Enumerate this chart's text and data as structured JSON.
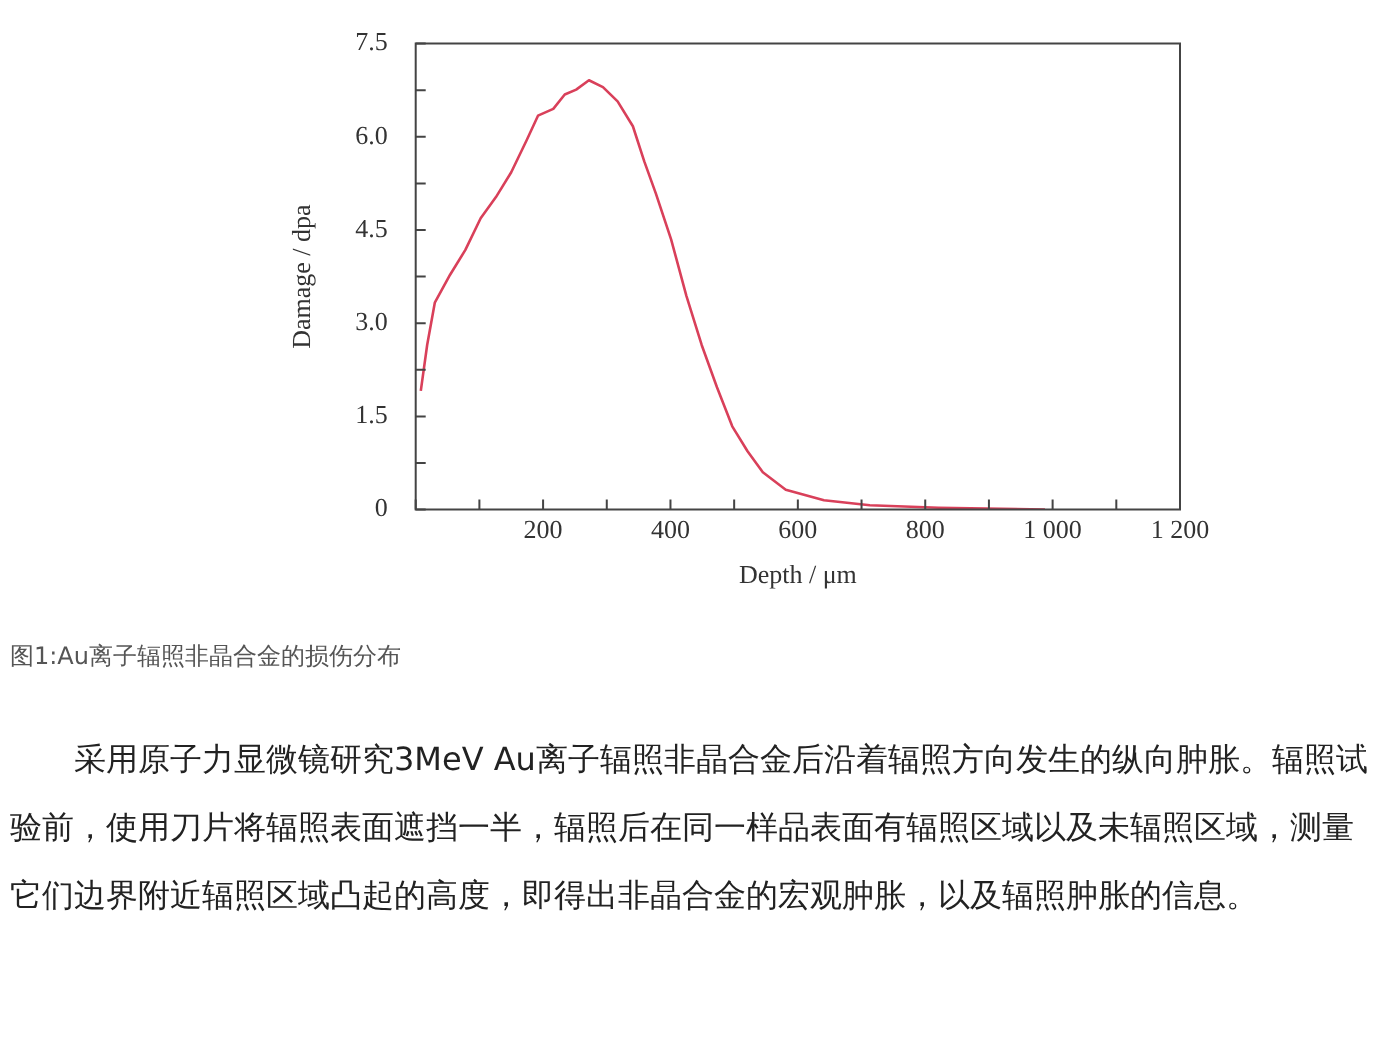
{
  "chart_data": {
    "type": "line",
    "xlabel": "Depth / μm",
    "ylabel": "Damage / dpa",
    "x": [
      8,
      18,
      30,
      54,
      78,
      102,
      126,
      150,
      174,
      192,
      216,
      234,
      252,
      272,
      294,
      317,
      341,
      359,
      377,
      401,
      425,
      449,
      473,
      497,
      521,
      545,
      581,
      641,
      713,
      821,
      988
    ],
    "series": [
      {
        "color": "#d9405a",
        "values": [
          1.91,
          2.65,
          3.33,
          3.78,
          4.18,
          4.69,
          5.03,
          5.43,
          5.94,
          6.34,
          6.45,
          6.68,
          6.76,
          6.91,
          6.8,
          6.57,
          6.17,
          5.6,
          5.09,
          4.35,
          3.44,
          2.65,
          1.97,
          1.34,
          0.94,
          0.6,
          0.32,
          0.15,
          0.07,
          0.03,
          0
        ]
      }
    ],
    "xlim": [
      0,
      1200
    ],
    "ylim": [
      0,
      7.5
    ],
    "xticks": [
      {
        "value": 0,
        "label": null
      },
      {
        "value": 100,
        "label": null
      },
      200,
      {
        "value": 300,
        "label": null
      },
      400,
      {
        "value": 500,
        "label": null
      },
      600,
      {
        "value": 700,
        "label": null
      },
      800,
      {
        "value": 900,
        "label": null
      },
      {
        "value": 1000,
        "label": "1 000"
      },
      {
        "value": 1100,
        "label": null
      },
      {
        "value": 1200,
        "label": "1 200"
      }
    ],
    "yticks": [
      0,
      {
        "value": 0.75,
        "label": null
      },
      {
        "value": 1.5,
        "label": "1.5"
      },
      {
        "value": 2.25,
        "label": null
      },
      {
        "value": 3,
        "label": "3.0"
      },
      {
        "value": 3.75,
        "label": null
      },
      {
        "value": 4.5,
        "label": "4.5"
      },
      {
        "value": 5.25,
        "label": null
      },
      {
        "value": 6,
        "label": "6.0"
      },
      {
        "value": 6.75,
        "label": null
      },
      {
        "value": 7.5,
        "label": "7.5"
      }
    ],
    "marker": "none",
    "line_style": "solid",
    "legend": false,
    "annotations": [
      "图1:Au离子辐照非晶合金的损伤分布",
      "采用原子力显微镜研究3MeV Au离子辐照非晶合金后沿着辐照方向发生的纵向肿胀。辐照试验前，使用刀片将辐照表面遮挡一半，辐照后在同一样品表面有辐照区域以及未辐照区域，测量它们边界附近辐照区域凸起的高度，即得出非晶合金的宏观肿胀，以及辐照肿胀的信息。"
    ]
  }
}
